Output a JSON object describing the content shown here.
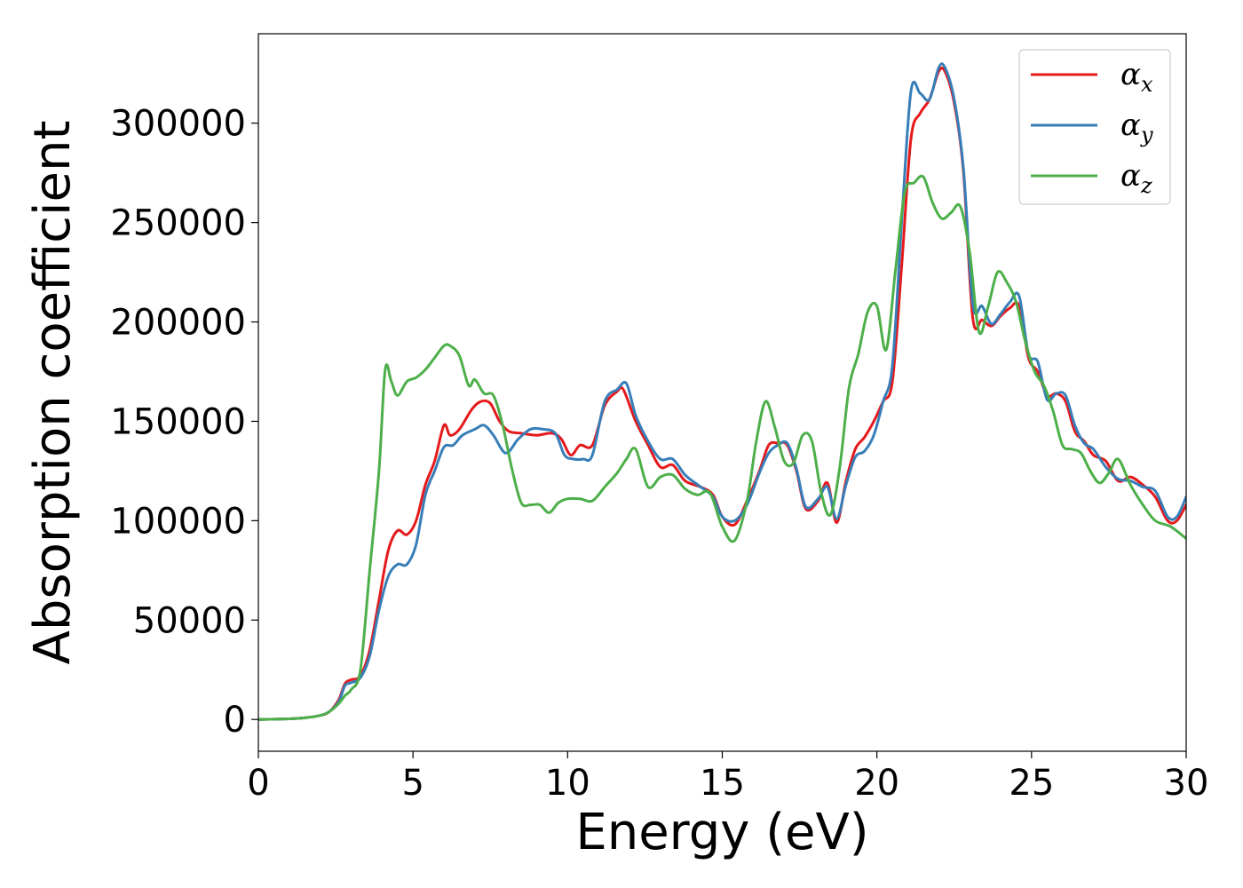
{
  "chart_data": {
    "type": "line",
    "title": "",
    "xlabel": "Energy (eV)",
    "ylabel": "Absorption coefficient",
    "xlim": [
      0,
      30
    ],
    "ylim": [
      -16000,
      345000
    ],
    "xticks": [
      0,
      5,
      10,
      15,
      20,
      25,
      30
    ],
    "yticks": [
      0,
      50000,
      100000,
      150000,
      200000,
      250000,
      300000
    ],
    "grid": false,
    "legend_position": "top-right",
    "series": [
      {
        "name": "αx",
        "name_base": "α",
        "name_sub": "x",
        "color": "#e41a1c",
        "x": [
          0,
          1,
          1.5,
          2,
          2.3,
          2.6,
          2.8,
          3.0,
          3.3,
          3.6,
          3.9,
          4.2,
          4.5,
          4.8,
          5.1,
          5.4,
          5.7,
          6.0,
          6.2,
          6.5,
          6.9,
          7.2,
          7.5,
          7.8,
          8.1,
          8.5,
          9.0,
          9.5,
          9.8,
          10.1,
          10.4,
          10.8,
          11.2,
          11.6,
          11.8,
          12.2,
          12.6,
          13.0,
          13.4,
          13.8,
          14.3,
          14.7,
          15.0,
          15.4,
          15.8,
          16.2,
          16.5,
          16.8,
          17.1,
          17.4,
          17.7,
          18.1,
          18.4,
          18.7,
          19.0,
          19.3,
          19.6,
          19.9,
          20.2,
          20.5,
          20.8,
          21.1,
          21.4,
          21.7,
          22.0,
          22.2,
          22.5,
          22.8,
          23.1,
          23.4,
          23.7,
          24.0,
          24.3,
          24.6,
          24.9,
          25.2,
          25.5,
          25.8,
          26.1,
          26.4,
          26.7,
          27.0,
          27.4,
          27.8,
          28.2,
          28.6,
          29.0,
          29.4,
          29.7,
          30.0
        ],
        "values": [
          0,
          300,
          800,
          2000,
          4000,
          10000,
          18000,
          20000,
          22000,
          35000,
          60000,
          85000,
          95000,
          93000,
          100000,
          118000,
          130000,
          148000,
          143000,
          146000,
          156000,
          160000,
          159000,
          150000,
          145000,
          144000,
          143000,
          144000,
          141000,
          133000,
          138000,
          138000,
          158000,
          165000,
          166000,
          150000,
          138000,
          127000,
          128000,
          120000,
          117000,
          113000,
          102000,
          98000,
          110000,
          125000,
          138000,
          139000,
          138000,
          125000,
          106000,
          110000,
          119000,
          99000,
          120000,
          136000,
          142000,
          150000,
          160000,
          170000,
          228000,
          292000,
          305000,
          312000,
          326000,
          326000,
          310000,
          275000,
          202000,
          201000,
          198000,
          203000,
          207000,
          208000,
          182000,
          175000,
          163000,
          164000,
          160000,
          145000,
          140000,
          133000,
          130000,
          120000,
          122000,
          118000,
          112000,
          100000,
          100000,
          108000
        ]
      },
      {
        "name": "αy",
        "name_base": "α",
        "name_sub": "y",
        "color": "#377eb8",
        "x": [
          0,
          1,
          1.5,
          2,
          2.3,
          2.6,
          2.8,
          3.0,
          3.3,
          3.6,
          3.9,
          4.2,
          4.5,
          4.8,
          5.1,
          5.4,
          5.7,
          6.0,
          6.3,
          6.6,
          7.0,
          7.3,
          7.6,
          8.0,
          8.4,
          8.8,
          9.2,
          9.6,
          9.9,
          10.2,
          10.5,
          10.8,
          11.2,
          11.6,
          11.9,
          12.2,
          12.6,
          13.0,
          13.4,
          13.8,
          14.3,
          14.7,
          15.0,
          15.4,
          15.8,
          16.2,
          16.5,
          16.8,
          17.1,
          17.4,
          17.7,
          18.1,
          18.4,
          18.7,
          19.0,
          19.3,
          19.6,
          19.9,
          20.2,
          20.5,
          20.8,
          21.1,
          21.4,
          21.7,
          22.0,
          22.2,
          22.5,
          22.8,
          23.1,
          23.4,
          23.7,
          24.0,
          24.3,
          24.6,
          24.9,
          25.2,
          25.5,
          25.8,
          26.1,
          26.4,
          26.7,
          27.0,
          27.4,
          27.8,
          28.2,
          28.6,
          29.0,
          29.4,
          29.7,
          30.0
        ],
        "values": [
          0,
          300,
          800,
          2000,
          4000,
          9000,
          17000,
          18500,
          21000,
          32000,
          55000,
          72000,
          78000,
          78000,
          88000,
          113000,
          125000,
          137000,
          138000,
          143000,
          146000,
          148000,
          143000,
          134000,
          141000,
          146000,
          146000,
          144000,
          133000,
          131000,
          131000,
          133000,
          160000,
          166000,
          169000,
          153000,
          140000,
          131000,
          131000,
          123000,
          117000,
          112000,
          102000,
          100000,
          108000,
          124000,
          134000,
          138000,
          139000,
          126000,
          107000,
          111000,
          117000,
          101000,
          118000,
          132000,
          135000,
          143000,
          160000,
          178000,
          250000,
          316000,
          315000,
          312000,
          328000,
          328000,
          312000,
          277000,
          209000,
          208000,
          199000,
          204000,
          210000,
          213000,
          184000,
          180000,
          161000,
          164000,
          163000,
          148000,
          139000,
          136000,
          127000,
          121000,
          120000,
          117000,
          115000,
          102000,
          102000,
          112000
        ]
      },
      {
        "name": "αz",
        "name_base": "α",
        "name_sub": "z",
        "color": "#4daf4a",
        "x": [
          0,
          1,
          1.5,
          2,
          2.3,
          2.6,
          2.8,
          3.0,
          3.3,
          3.6,
          3.9,
          4.1,
          4.3,
          4.5,
          4.8,
          5.1,
          5.4,
          5.7,
          6.0,
          6.2,
          6.5,
          6.8,
          7.0,
          7.3,
          7.6,
          7.9,
          8.2,
          8.5,
          8.8,
          9.1,
          9.4,
          9.7,
          10.0,
          10.4,
          10.8,
          11.2,
          11.6,
          11.9,
          12.2,
          12.6,
          13.0,
          13.4,
          13.8,
          14.2,
          14.6,
          15.0,
          15.4,
          15.8,
          16.1,
          16.4,
          16.7,
          17.0,
          17.3,
          17.6,
          17.9,
          18.2,
          18.5,
          18.8,
          19.1,
          19.4,
          19.7,
          20.0,
          20.3,
          20.6,
          20.9,
          21.2,
          21.5,
          21.8,
          22.1,
          22.4,
          22.7,
          23.0,
          23.3,
          23.6,
          23.9,
          24.2,
          24.5,
          24.8,
          25.1,
          25.4,
          25.7,
          26.0,
          26.3,
          26.6,
          26.9,
          27.2,
          27.5,
          27.8,
          28.2,
          28.6,
          29.0,
          29.5,
          30.0
        ],
        "values": [
          0,
          300,
          800,
          2000,
          4000,
          8000,
          12000,
          15000,
          25000,
          75000,
          125000,
          176000,
          170000,
          163000,
          170000,
          172000,
          176000,
          182000,
          188000,
          188000,
          183000,
          168000,
          171000,
          164000,
          163000,
          148000,
          126000,
          109000,
          108000,
          108000,
          104000,
          109000,
          111000,
          111000,
          110000,
          117000,
          124000,
          131000,
          136000,
          117000,
          122000,
          123000,
          116000,
          113000,
          114000,
          97000,
          90000,
          110000,
          140000,
          160000,
          147000,
          130000,
          129000,
          143000,
          140000,
          114000,
          103000,
          127000,
          167000,
          184000,
          205000,
          208000,
          186000,
          226000,
          265000,
          270000,
          273000,
          260000,
          252000,
          255000,
          258000,
          235000,
          195000,
          208000,
          225000,
          220000,
          210000,
          190000,
          175000,
          168000,
          155000,
          138000,
          136000,
          134000,
          125000,
          119000,
          124000,
          131000,
          118000,
          108000,
          100000,
          97000,
          91000
        ]
      }
    ]
  }
}
